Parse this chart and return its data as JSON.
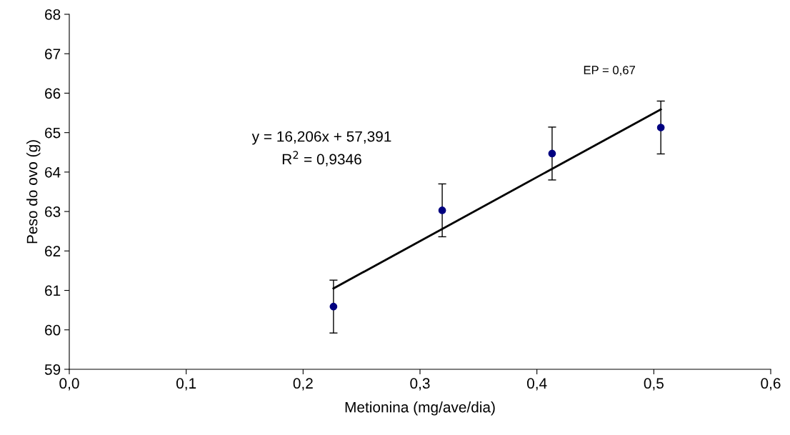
{
  "chart_data": {
    "type": "scatter",
    "xlabel": "Metionina (mg/ave/dia)",
    "ylabel": "Peso do ovo (g)",
    "series": [
      {
        "color": "#000080",
        "x": [
          0.226,
          0.319,
          0.413,
          0.506
        ],
        "values": [
          60.59,
          63.03,
          64.47,
          65.13
        ],
        "errors": [
          0.67,
          0.67,
          0.67,
          0.67
        ],
        "marker": "circle"
      },
      {
        "type": "line",
        "color": "#000000",
        "x": [
          0.226,
          0.506
        ],
        "values": [
          61.05,
          65.59
        ],
        "marker": "none",
        "line_style": "solid"
      }
    ],
    "xlim": [
      0,
      0.6
    ],
    "ylim": [
      59,
      68
    ],
    "xticks": [
      {
        "value": 0,
        "label": "0,0"
      },
      {
        "value": 0.1,
        "label": "0,1"
      },
      {
        "value": 0.2,
        "label": "0,2"
      },
      {
        "value": 0.3,
        "label": "0,3"
      },
      {
        "value": 0.4,
        "label": "0,4"
      },
      {
        "value": 0.5,
        "label": "0,5"
      },
      {
        "value": 0.6,
        "label": "0,6"
      }
    ],
    "yticks": [
      59,
      60,
      61,
      62,
      63,
      64,
      65,
      66,
      67,
      68
    ],
    "annotations": [
      "y = 16,206x + 57,391\nR$^{2}$ = 0,9346",
      "EP = 0,67"
    ],
    "grid": false,
    "legend": false
  }
}
